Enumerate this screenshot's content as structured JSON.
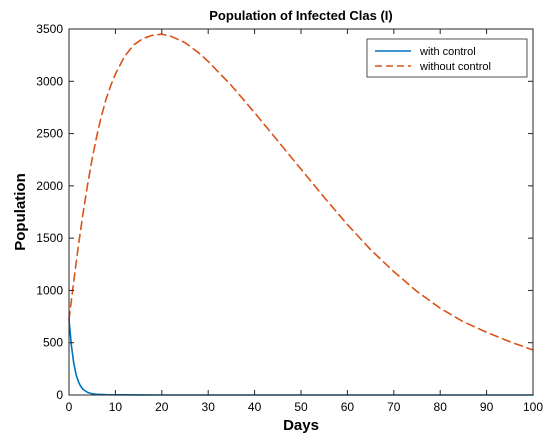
{
  "chart_data": {
    "type": "line",
    "title": "Population of Infected Clas (I)",
    "xlabel": "Days",
    "ylabel": "Population",
    "xlim": [
      0,
      100
    ],
    "ylim": [
      0,
      3500
    ],
    "xticks": [
      0,
      10,
      20,
      30,
      40,
      50,
      60,
      70,
      80,
      90,
      100
    ],
    "yticks": [
      0,
      500,
      1000,
      1500,
      2000,
      2500,
      3000,
      3500
    ],
    "xtick_labels": [
      "0",
      "10",
      "20",
      "30",
      "40",
      "50",
      "60",
      "70",
      "80",
      "90",
      "100"
    ],
    "ytick_labels": [
      "0",
      "500",
      "1000",
      "1500",
      "2000",
      "2500",
      "3000",
      "3500"
    ],
    "grid": false,
    "legend_position": "top-right",
    "series": [
      {
        "name": "with control",
        "color": "#0072BD",
        "style": "solid",
        "x": [
          0,
          0.5,
          1,
          1.5,
          2,
          2.5,
          3,
          4,
          5,
          6,
          8,
          10,
          15,
          20,
          30,
          40,
          50,
          60,
          70,
          80,
          90,
          100
        ],
        "y": [
          720,
          480,
          310,
          200,
          130,
          85,
          55,
          25,
          12,
          7,
          3,
          2,
          1,
          0,
          0,
          0,
          0,
          0,
          0,
          0,
          0,
          0
        ]
      },
      {
        "name": "without control",
        "color": "#D95319",
        "style": "dashed",
        "x": [
          0,
          1,
          2,
          3,
          4,
          5,
          6,
          7,
          8,
          9,
          10,
          12,
          14,
          16,
          18,
          20,
          22,
          25,
          28,
          30,
          35,
          40,
          45,
          50,
          55,
          60,
          65,
          70,
          75,
          80,
          85,
          90,
          95,
          100
        ],
        "y": [
          720,
          1080,
          1420,
          1730,
          2010,
          2260,
          2480,
          2670,
          2830,
          2960,
          3070,
          3240,
          3350,
          3410,
          3440,
          3450,
          3430,
          3370,
          3270,
          3190,
          2960,
          2700,
          2430,
          2160,
          1890,
          1630,
          1390,
          1180,
          990,
          830,
          700,
          600,
          510,
          430
        ]
      }
    ]
  }
}
